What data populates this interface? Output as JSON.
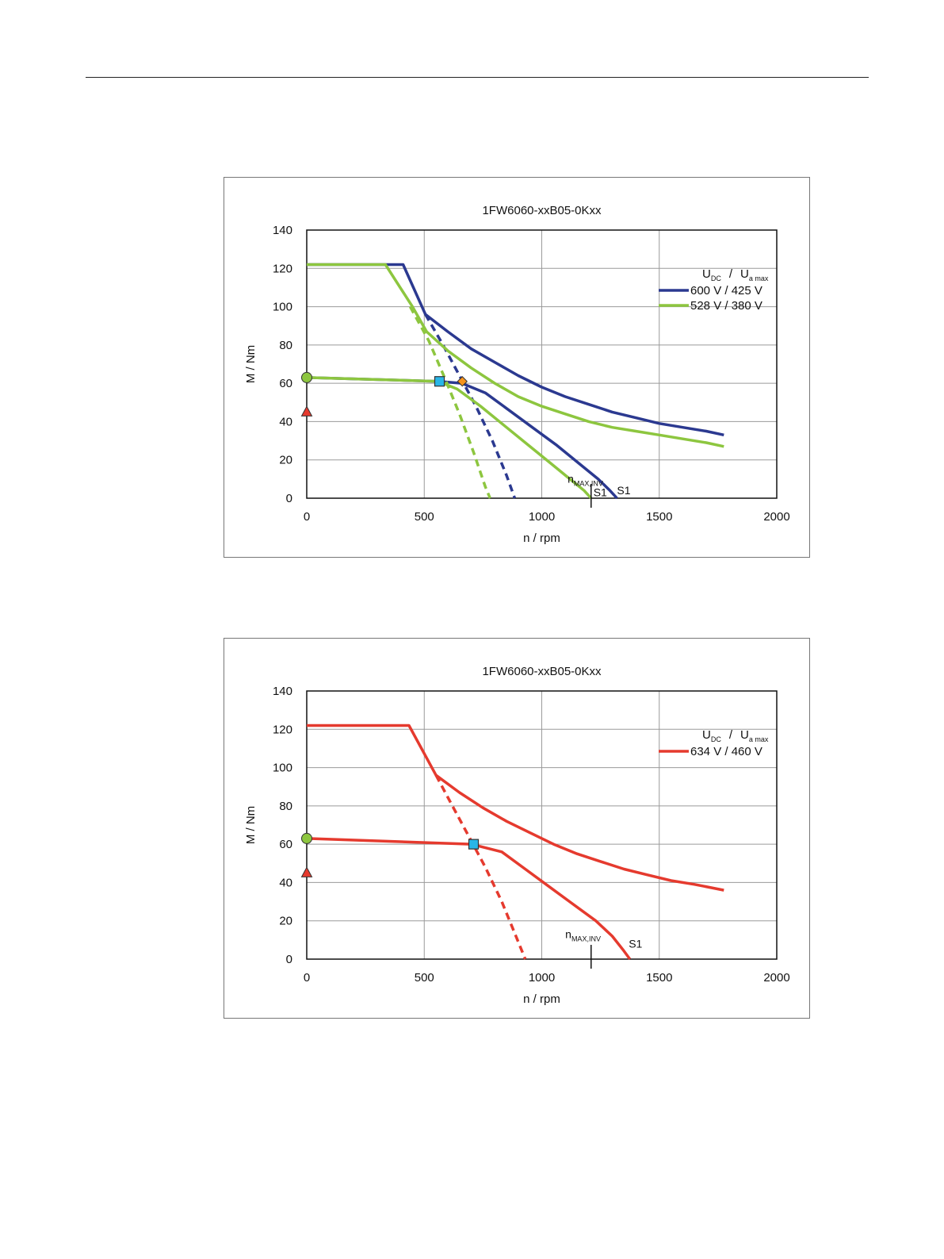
{
  "chart_data": [
    {
      "type": "line",
      "title": "1FW6060-xxB05-0Kxx",
      "xlabel": "n / rpm",
      "ylabel": "M / Nm",
      "xlim": [
        0,
        2000
      ],
      "ylim": [
        0,
        140
      ],
      "xticks": [
        "0",
        "500",
        "1000",
        "1500",
        "2000"
      ],
      "yticks": [
        "0",
        "20",
        "40",
        "60",
        "80",
        "100",
        "120",
        "140"
      ],
      "grid": true,
      "legend": {
        "position": "right",
        "title_main_1": "U",
        "title_sub_1": "DC",
        "title_sep": "/",
        "title_main_2": "U",
        "title_sub_2": "a max",
        "entries": [
          "600 V / 425 V",
          "528 V / 380 V"
        ]
      },
      "series": [
        {
          "id": "blue-peak",
          "color": "#2b3990",
          "dash": false,
          "x": [
            0,
            410,
            505,
            600,
            700,
            800,
            900,
            1000,
            1100,
            1200,
            1300,
            1400,
            1500,
            1600,
            1700,
            1775
          ],
          "y": [
            122,
            122,
            96,
            87,
            78,
            71,
            64,
            58,
            53,
            49,
            45,
            42,
            39,
            37,
            35,
            33
          ]
        },
        {
          "id": "blue-peak-ext",
          "color": "#2b3990",
          "dash": true,
          "x": [
            505,
            580,
            650,
            720,
            790,
            850,
            885
          ],
          "y": [
            96,
            80,
            64,
            48,
            30,
            12,
            0
          ]
        },
        {
          "id": "blue-s1",
          "color": "#2b3990",
          "dash": false,
          "x": [
            0,
            560,
            660,
            760,
            860,
            960,
            1060,
            1160,
            1240,
            1290,
            1320
          ],
          "y": [
            63,
            61,
            60,
            55,
            46,
            37,
            28,
            18,
            10,
            4,
            0
          ]
        },
        {
          "id": "green-peak",
          "color": "#8dc63f",
          "dash": false,
          "x": [
            0,
            335,
            450,
            510,
            600,
            700,
            800,
            900,
            1000,
            1100,
            1200,
            1300,
            1400,
            1500,
            1600,
            1700,
            1775
          ],
          "y": [
            122,
            122,
            100,
            87,
            77,
            68,
            60,
            53,
            48,
            44,
            40,
            37,
            35,
            33,
            31,
            29,
            27
          ]
        },
        {
          "id": "green-peak-ext",
          "color": "#8dc63f",
          "dash": true,
          "x": [
            440,
            520,
            590,
            650,
            710,
            760,
            780
          ],
          "y": [
            100,
            82,
            62,
            44,
            24,
            6,
            0
          ]
        },
        {
          "id": "green-s1",
          "color": "#8dc63f",
          "dash": false,
          "x": [
            0,
            560,
            640,
            740,
            840,
            940,
            1040,
            1120,
            1180,
            1210
          ],
          "y": [
            63,
            61,
            57,
            48,
            38,
            28,
            18,
            10,
            4,
            0
          ]
        }
      ],
      "markers": [
        {
          "shape": "circle",
          "color": "#8dc63f",
          "x": 0,
          "y": 63
        },
        {
          "shape": "triangle",
          "color": "#e53a2e",
          "x": 0,
          "y": 45
        },
        {
          "shape": "square",
          "color": "#29b6e8",
          "x": 565,
          "y": 61
        },
        {
          "shape": "diamond",
          "color": "#f7941d",
          "x": 662,
          "y": 61
        }
      ],
      "nmax_inv": 1210,
      "annotations": [
        {
          "label": "n",
          "sub": "MAX,INV",
          "x": 1110,
          "y": 8
        },
        {
          "label": "S1",
          "x": 1220,
          "y": 1
        },
        {
          "label": "S1",
          "x": 1320,
          "y": 2
        }
      ]
    },
    {
      "type": "line",
      "title": "1FW6060-xxB05-0Kxx",
      "xlabel": "n / rpm",
      "ylabel": "M / Nm",
      "xlim": [
        0,
        2000
      ],
      "ylim": [
        0,
        140
      ],
      "xticks": [
        "0",
        "500",
        "1000",
        "1500",
        "2000"
      ],
      "yticks": [
        "0",
        "20",
        "40",
        "60",
        "80",
        "100",
        "120",
        "140"
      ],
      "grid": true,
      "legend": {
        "position": "right",
        "title_main_1": "U",
        "title_sub_1": "DC",
        "title_sep": "/",
        "title_main_2": "U",
        "title_sub_2": "a max",
        "entries": [
          "634 V / 460 V"
        ]
      },
      "series": [
        {
          "id": "red-peak",
          "color": "#e53a2e",
          "dash": false,
          "x": [
            0,
            435,
            550,
            650,
            750,
            850,
            950,
            1050,
            1150,
            1250,
            1350,
            1450,
            1550,
            1650,
            1775
          ],
          "y": [
            122,
            122,
            96,
            87,
            79,
            72,
            66,
            60,
            55,
            51,
            47,
            44,
            41,
            39,
            36
          ]
        },
        {
          "id": "red-peak-ext",
          "color": "#e53a2e",
          "dash": true,
          "x": [
            550,
            620,
            690,
            760,
            830,
            890,
            930
          ],
          "y": [
            96,
            80,
            64,
            48,
            30,
            12,
            0
          ]
        },
        {
          "id": "red-s1",
          "color": "#e53a2e",
          "dash": false,
          "x": [
            0,
            700,
            830,
            930,
            1030,
            1130,
            1230,
            1300,
            1345,
            1375
          ],
          "y": [
            63,
            60,
            56,
            47,
            38,
            29,
            20,
            12,
            5,
            0
          ]
        }
      ],
      "markers": [
        {
          "shape": "circle",
          "color": "#8dc63f",
          "x": 0,
          "y": 63
        },
        {
          "shape": "triangle",
          "color": "#e53a2e",
          "x": 0,
          "y": 45
        },
        {
          "shape": "square",
          "color": "#29b6e8",
          "x": 710,
          "y": 60
        }
      ],
      "nmax_inv": 1210,
      "annotations": [
        {
          "label": "n",
          "sub": "MAX,INV",
          "x": 1100,
          "y": 11
        },
        {
          "label": "S1",
          "x": 1370,
          "y": 6
        }
      ]
    }
  ]
}
